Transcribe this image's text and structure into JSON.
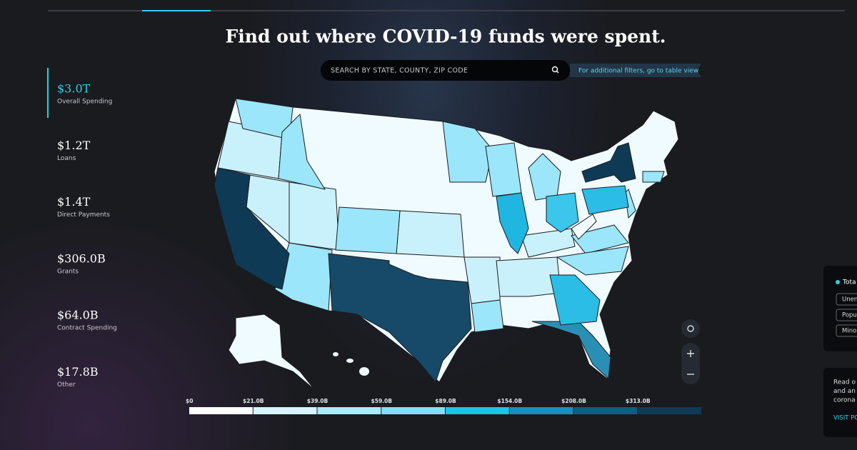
{
  "header": {
    "title": "Find out where COVID-19 funds were spent."
  },
  "search": {
    "placeholder": "SEARCH BY STATE, COUNTY, ZIP CODE",
    "filters_link": "For additional filters, go to table view"
  },
  "stats": [
    {
      "value": "$3.0T",
      "label": "Overall Spending"
    },
    {
      "value": "$1.2T",
      "label": "Loans"
    },
    {
      "value": "$1.4T",
      "label": "Direct Payments"
    },
    {
      "value": "$306.0B",
      "label": "Grants"
    },
    {
      "value": "$64.0B",
      "label": "Contract Spending"
    },
    {
      "value": "$17.8B",
      "label": "Other"
    }
  ],
  "legend": {
    "ticks": [
      "$0",
      "$21.0B",
      "$39.0B",
      "$59.0B",
      "$89.0B",
      "$154.0B",
      "$208.0B",
      "$313.0B"
    ],
    "colors": [
      "#ffffff",
      "#d8f4fc",
      "#a9ebfb",
      "#7fe0f9",
      "#17c6ef",
      "#1392bb",
      "#0f5f82",
      "#0e3a55"
    ]
  },
  "side_panel": {
    "total": "Tota",
    "options": [
      "Unen",
      "Popu",
      "Mino"
    ],
    "note": [
      "Read o",
      "and an",
      "corona"
    ],
    "link": "VISIT PO"
  }
}
